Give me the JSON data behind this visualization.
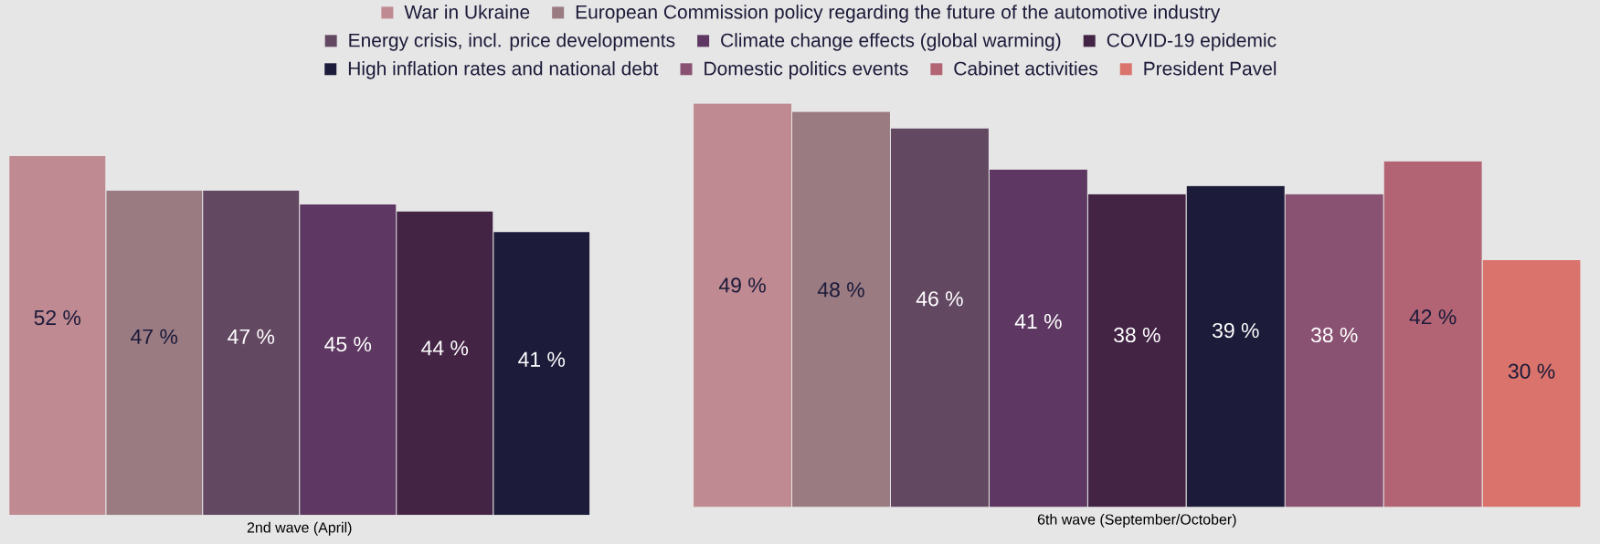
{
  "chart_data": [
    {
      "type": "bar",
      "xlabel": "2nd wave (April)",
      "categories": [
        null
      ],
      "series": [
        {
          "color": "#bf8a91",
          "values": [
            52
          ],
          "value_labels": [
            "52 %"
          ]
        },
        {
          "color": "#9a7b82",
          "values": [
            47
          ],
          "value_labels": [
            "47 %"
          ]
        },
        {
          "color": "#634862",
          "values": [
            47
          ],
          "value_labels": [
            "47 %"
          ]
        },
        {
          "color": "#5e3862",
          "values": [
            45
          ],
          "value_labels": [
            "45 %"
          ]
        },
        {
          "color": "#432445",
          "values": [
            44
          ],
          "value_labels": [
            "44 %"
          ]
        },
        {
          "color": "#1c1b3a",
          "values": [
            41
          ],
          "value_labels": [
            "41 %"
          ]
        }
      ]
    },
    {
      "type": "bar",
      "xlabel": "6th wave (September/October)",
      "categories": [
        null
      ],
      "legend": "top",
      "series": [
        {
          "name": "War in Ukraine",
          "color": "#bf8a91",
          "values": [
            49
          ],
          "value_labels": [
            "49 %"
          ]
        },
        {
          "name": "European Commission policy regarding the future of the automotive industry",
          "color": "#9a7b82",
          "values": [
            48
          ],
          "value_labels": [
            "48 %"
          ]
        },
        {
          "name": "Energy crisis, incl. price developments",
          "color": "#634862",
          "values": [
            46
          ],
          "value_labels": [
            "46 %"
          ]
        },
        {
          "name": "Climate change effects (global warming)",
          "color": "#5e3862",
          "values": [
            41
          ],
          "value_labels": [
            "41 %"
          ]
        },
        {
          "name": "COVID-19 epidemic",
          "color": "#432445",
          "values": [
            38
          ],
          "value_labels": [
            "38 %"
          ]
        },
        {
          "name": "High inflation rates and national debt",
          "color": "#1c1b3a",
          "values": [
            39
          ],
          "value_labels": [
            "39 %"
          ]
        },
        {
          "name": "Domestic politics events",
          "color": "#8a5272",
          "values": [
            38
          ],
          "value_labels": [
            "38 %"
          ]
        },
        {
          "name": "Cabinet activities",
          "color": "#b26474",
          "values": [
            42
          ],
          "value_labels": [
            "42 %"
          ]
        },
        {
          "name": "President Pavel",
          "color": "#d9736b",
          "values": [
            30
          ],
          "value_labels": [
            "30 %"
          ]
        }
      ]
    }
  ]
}
